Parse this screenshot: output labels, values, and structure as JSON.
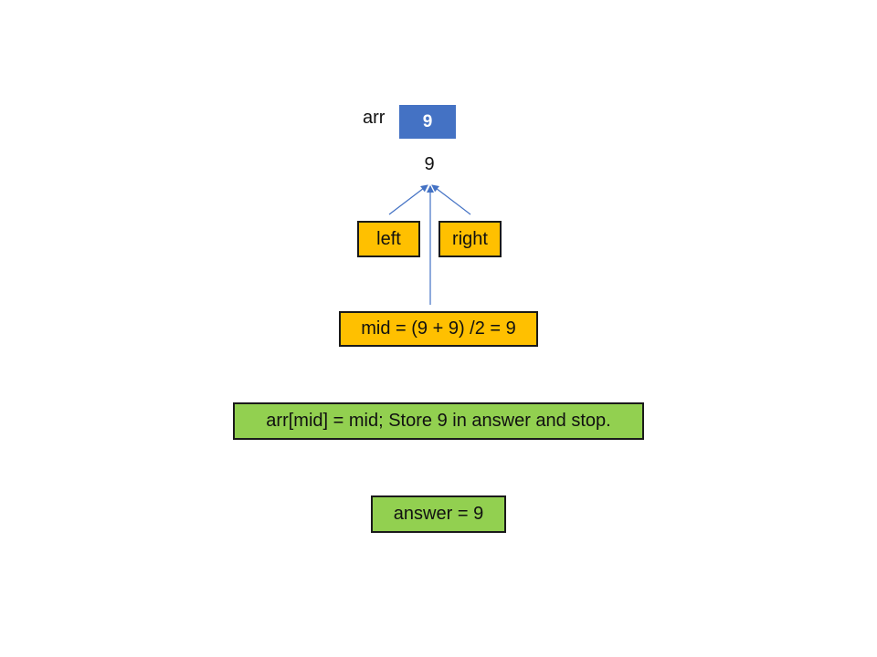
{
  "array": {
    "label": "arr",
    "cells": [
      "9"
    ],
    "indices": [
      "9"
    ]
  },
  "pointers": {
    "left": "left",
    "right": "right"
  },
  "mid_calc": "mid = (9 + 9) /2 = 9",
  "condition": "arr[mid] = mid;  Store 9 in answer and stop.",
  "answer": "answer = 9",
  "colors": {
    "cell": "#4472c4",
    "pointer_box": "#ffc000",
    "result_box": "#92d050",
    "arrow": "#4472c4"
  }
}
